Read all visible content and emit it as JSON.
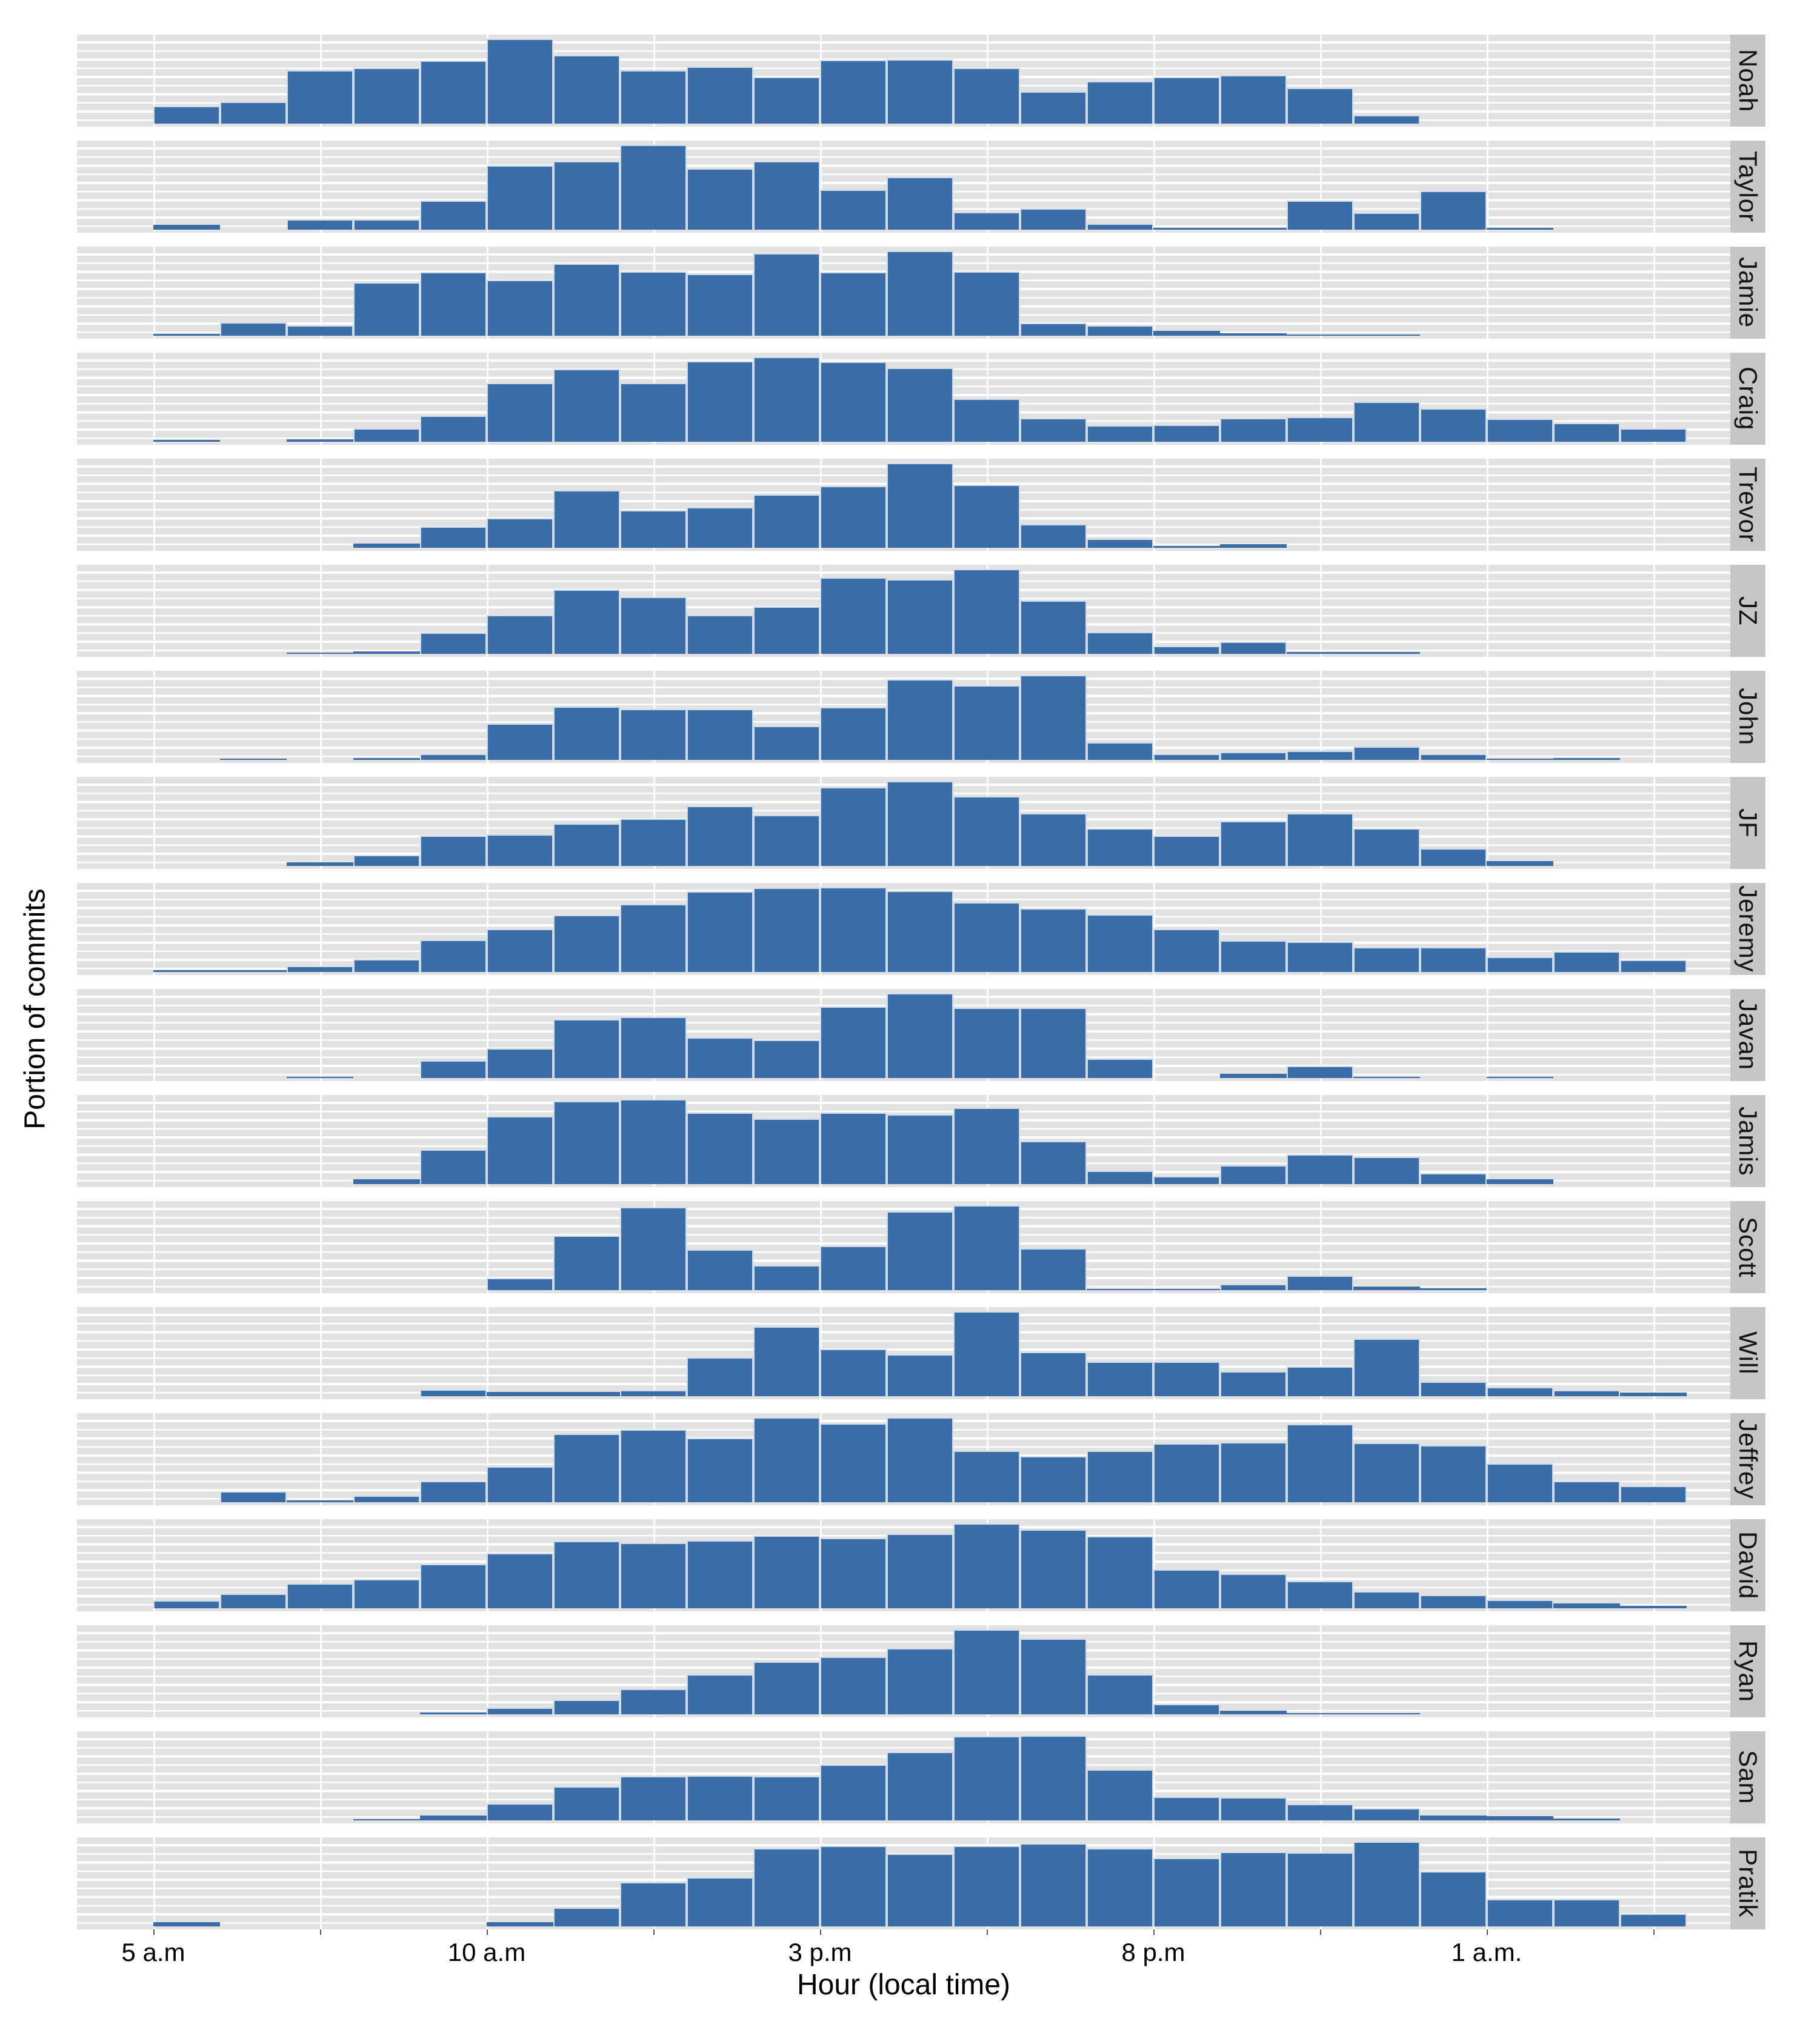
{
  "figure": {
    "ylabel": "Portion of commits",
    "xlabel": "Hour (local time)",
    "bar_color": "#3A6CA8",
    "panel_bg": "#E2E2E2",
    "strip_bg": "#C6C6C6",
    "gridline_color": "#FFFFFF"
  },
  "chart_data": {
    "type": "bar",
    "subtype": "faceted_histogram_small_multiples",
    "title": "",
    "xlabel": "Hour (local time)",
    "ylabel": "Portion of commits",
    "layout": {
      "grid": true,
      "legend": false,
      "facet_strip_position": "right",
      "y_scale": "free_per_facet",
      "y_tick_labels_shown": false,
      "bin_width_hours": 1
    },
    "hours": [
      5,
      6,
      7,
      8,
      9,
      10,
      11,
      12,
      13,
      14,
      15,
      16,
      17,
      18,
      19,
      20,
      21,
      22,
      23,
      0,
      1,
      2,
      3,
      4
    ],
    "x_ticks": [
      {
        "label": "5 a.m",
        "slot": 0
      },
      {
        "label": "10 a.m",
        "slot": 5
      },
      {
        "label": "3 p.m",
        "slot": 10
      },
      {
        "label": "8 p.m",
        "slot": 15
      },
      {
        "label": "1 a.m.",
        "slot": 20
      }
    ],
    "facets": [
      {
        "name": "Noah",
        "values": [
          0.21,
          0.26,
          0.63,
          0.66,
          0.74,
          1.0,
          0.81,
          0.63,
          0.67,
          0.55,
          0.75,
          0.76,
          0.66,
          0.38,
          0.5,
          0.55,
          0.57,
          0.42,
          0.1,
          0,
          0,
          0,
          0,
          0
        ]
      },
      {
        "name": "Taylor",
        "values": [
          0.06,
          0,
          0.12,
          0.12,
          0.34,
          0.76,
          0.81,
          1.0,
          0.72,
          0.81,
          0.47,
          0.62,
          0.21,
          0.25,
          0.07,
          0.02,
          0.02,
          0.34,
          0.2,
          0.46,
          0.02,
          0,
          0,
          0
        ]
      },
      {
        "name": "Jamie",
        "values": [
          0.02,
          0.16,
          0.12,
          0.63,
          0.75,
          0.66,
          0.85,
          0.76,
          0.73,
          0.97,
          0.75,
          1.0,
          0.76,
          0.15,
          0.12,
          0.06,
          0.03,
          0.01,
          0.01,
          0,
          0,
          0,
          0,
          0
        ]
      },
      {
        "name": "Craig",
        "values": [
          0.02,
          0,
          0.03,
          0.16,
          0.31,
          0.69,
          0.86,
          0.69,
          0.95,
          1.0,
          0.94,
          0.87,
          0.51,
          0.28,
          0.19,
          0.2,
          0.28,
          0.29,
          0.47,
          0.39,
          0.27,
          0.22,
          0.16,
          0
        ]
      },
      {
        "name": "Trevor",
        "values": [
          0,
          0,
          0,
          0.05,
          0.25,
          0.35,
          0.68,
          0.44,
          0.48,
          0.63,
          0.73,
          1.0,
          0.74,
          0.28,
          0.11,
          0.02,
          0.04,
          0,
          0,
          0,
          0,
          0,
          0,
          0
        ]
      },
      {
        "name": "JZ",
        "values": [
          0,
          0,
          0.01,
          0.03,
          0.25,
          0.46,
          0.76,
          0.67,
          0.46,
          0.56,
          0.9,
          0.88,
          1.0,
          0.63,
          0.26,
          0.09,
          0.14,
          0.02,
          0.02,
          0,
          0,
          0,
          0,
          0
        ]
      },
      {
        "name": "John",
        "values": [
          0,
          0.01,
          0,
          0.02,
          0.07,
          0.43,
          0.63,
          0.6,
          0.6,
          0.4,
          0.62,
          0.95,
          0.88,
          1.0,
          0.21,
          0.07,
          0.09,
          0.11,
          0.16,
          0.07,
          0.01,
          0.02,
          0,
          0
        ]
      },
      {
        "name": "JF",
        "values": [
          0,
          0,
          0.04,
          0.13,
          0.36,
          0.37,
          0.5,
          0.56,
          0.71,
          0.6,
          0.93,
          1.0,
          0.82,
          0.62,
          0.44,
          0.36,
          0.53,
          0.62,
          0.44,
          0.21,
          0.06,
          0,
          0,
          0
        ]
      },
      {
        "name": "Jeremy",
        "values": [
          0.02,
          0.02,
          0.07,
          0.15,
          0.38,
          0.51,
          0.67,
          0.8,
          0.95,
          0.99,
          1.0,
          0.96,
          0.82,
          0.75,
          0.68,
          0.51,
          0.37,
          0.36,
          0.29,
          0.29,
          0.18,
          0.24,
          0.14,
          0
        ]
      },
      {
        "name": "Javan",
        "values": [
          0,
          0,
          0.01,
          0,
          0.21,
          0.35,
          0.69,
          0.72,
          0.48,
          0.45,
          0.84,
          1.0,
          0.83,
          0.83,
          0.23,
          0,
          0.05,
          0.14,
          0.01,
          0,
          0.01,
          0,
          0,
          0
        ]
      },
      {
        "name": "Jamis",
        "values": [
          0,
          0,
          0,
          0.06,
          0.41,
          0.8,
          0.98,
          1.0,
          0.84,
          0.77,
          0.84,
          0.82,
          0.9,
          0.51,
          0.16,
          0.09,
          0.22,
          0.35,
          0.32,
          0.13,
          0.06,
          0,
          0,
          0
        ]
      },
      {
        "name": "Scott",
        "values": [
          0,
          0,
          0,
          0,
          0,
          0.14,
          0.64,
          0.98,
          0.48,
          0.29,
          0.52,
          0.93,
          1.0,
          0.49,
          0.01,
          0.01,
          0.07,
          0.17,
          0.04,
          0.02,
          0,
          0,
          0,
          0
        ]
      },
      {
        "name": "Will",
        "values": [
          0,
          0,
          0,
          0,
          0.08,
          0.05,
          0.05,
          0.07,
          0.46,
          0.82,
          0.56,
          0.49,
          1.0,
          0.52,
          0.41,
          0.41,
          0.29,
          0.35,
          0.68,
          0.17,
          0.11,
          0.07,
          0.04,
          0
        ]
      },
      {
        "name": "Jeffrey",
        "values": [
          0,
          0.13,
          0.02,
          0.08,
          0.25,
          0.42,
          0.81,
          0.86,
          0.76,
          1.0,
          0.93,
          1.0,
          0.61,
          0.54,
          0.61,
          0.69,
          0.71,
          0.92,
          0.7,
          0.67,
          0.46,
          0.25,
          0.19,
          0
        ]
      },
      {
        "name": "David",
        "values": [
          0.09,
          0.17,
          0.29,
          0.34,
          0.52,
          0.65,
          0.79,
          0.77,
          0.8,
          0.86,
          0.83,
          0.88,
          1.0,
          0.93,
          0.85,
          0.46,
          0.41,
          0.32,
          0.2,
          0.16,
          0.1,
          0.06,
          0.03,
          0
        ]
      },
      {
        "name": "Ryan",
        "values": [
          0,
          0,
          0,
          0,
          0.02,
          0.08,
          0.17,
          0.3,
          0.47,
          0.62,
          0.68,
          0.78,
          1.0,
          0.89,
          0.47,
          0.12,
          0.04,
          0.01,
          0.01,
          0,
          0,
          0,
          0,
          0
        ]
      },
      {
        "name": "Sam",
        "values": [
          0,
          0,
          0,
          0.01,
          0.06,
          0.2,
          0.4,
          0.52,
          0.53,
          0.52,
          0.66,
          0.81,
          0.99,
          1.0,
          0.6,
          0.28,
          0.27,
          0.19,
          0.14,
          0.06,
          0.05,
          0.02,
          0,
          0
        ]
      },
      {
        "name": "Pratik",
        "values": [
          0.05,
          0,
          0,
          0,
          0,
          0.05,
          0.22,
          0.52,
          0.58,
          0.92,
          0.95,
          0.86,
          0.95,
          0.98,
          0.92,
          0.81,
          0.88,
          0.87,
          1.0,
          0.65,
          0.32,
          0.32,
          0.15,
          0
        ]
      }
    ]
  }
}
